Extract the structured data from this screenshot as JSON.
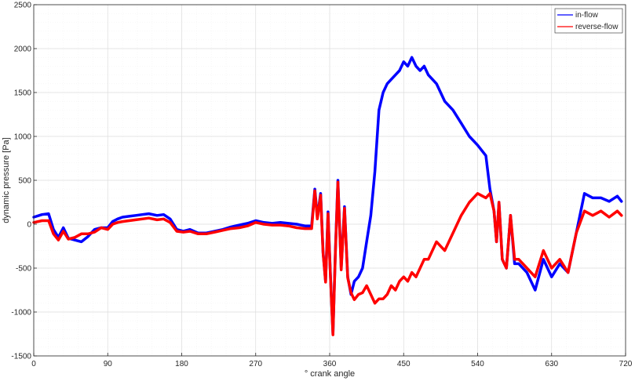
{
  "chart_data": {
    "type": "line",
    "title": "",
    "xlabel": "° crank angle",
    "ylabel": "dynamic pressure [Pa]",
    "xlim": [
      0,
      720
    ],
    "ylim": [
      -1500,
      2500
    ],
    "xticks": [
      0,
      90,
      180,
      270,
      360,
      450,
      540,
      630,
      720
    ],
    "yticks": [
      -1500,
      -1000,
      -500,
      0,
      500,
      1000,
      1500,
      2000,
      2500
    ],
    "grid": true,
    "minor_grid": true,
    "legend_position": "top-right",
    "series": [
      {
        "name": "in-flow",
        "color": "#0000ff",
        "x": [
          0,
          10,
          18,
          24,
          30,
          36,
          42,
          50,
          58,
          66,
          74,
          82,
          90,
          96,
          102,
          108,
          116,
          124,
          132,
          140,
          150,
          158,
          166,
          174,
          182,
          190,
          200,
          210,
          220,
          230,
          240,
          250,
          260,
          270,
          280,
          290,
          300,
          310,
          320,
          330,
          338,
          342,
          345,
          349,
          352,
          355,
          358,
          361,
          364,
          367,
          370,
          374,
          378,
          382,
          386,
          390,
          395,
          400,
          405,
          410,
          415,
          420,
          425,
          430,
          435,
          440,
          445,
          450,
          455,
          460,
          465,
          470,
          475,
          480,
          490,
          500,
          510,
          520,
          530,
          540,
          550,
          555,
          560,
          563,
          566,
          570,
          575,
          580,
          585,
          590,
          600,
          610,
          620,
          630,
          640,
          650,
          660,
          670,
          680,
          690,
          700,
          710,
          715
        ],
        "y": [
          80,
          110,
          120,
          -60,
          -150,
          -40,
          -160,
          -180,
          -200,
          -140,
          -60,
          -40,
          -40,
          30,
          60,
          80,
          90,
          100,
          110,
          120,
          100,
          110,
          60,
          -60,
          -80,
          -60,
          -100,
          -100,
          -80,
          -60,
          -30,
          -10,
          10,
          40,
          20,
          10,
          20,
          10,
          0,
          -20,
          -20,
          400,
          80,
          350,
          -320,
          -650,
          140,
          -580,
          -1250,
          -300,
          500,
          -500,
          200,
          -600,
          -800,
          -650,
          -600,
          -500,
          -200,
          100,
          600,
          1300,
          1500,
          1600,
          1650,
          1700,
          1750,
          1850,
          1800,
          1900,
          1800,
          1750,
          1800,
          1700,
          1600,
          1400,
          1300,
          1150,
          1000,
          900,
          780,
          400,
          150,
          -200,
          250,
          -400,
          -500,
          100,
          -450,
          -450,
          -550,
          -750,
          -400,
          -600,
          -450,
          -550,
          -100,
          350,
          300,
          300,
          260,
          320,
          260
        ]
      },
      {
        "name": "reverse-flow",
        "color": "#ff0000",
        "x": [
          0,
          10,
          18,
          24,
          30,
          36,
          42,
          50,
          58,
          66,
          74,
          82,
          90,
          96,
          102,
          108,
          116,
          124,
          132,
          140,
          150,
          158,
          166,
          174,
          182,
          190,
          200,
          210,
          220,
          230,
          240,
          250,
          260,
          270,
          280,
          290,
          300,
          310,
          320,
          330,
          338,
          342,
          345,
          349,
          352,
          355,
          358,
          361,
          364,
          367,
          370,
          374,
          378,
          382,
          386,
          390,
          395,
          400,
          405,
          410,
          415,
          420,
          425,
          430,
          435,
          440,
          445,
          450,
          455,
          460,
          465,
          470,
          475,
          480,
          490,
          500,
          510,
          520,
          530,
          540,
          550,
          555,
          560,
          563,
          566,
          570,
          575,
          580,
          585,
          590,
          600,
          610,
          620,
          630,
          640,
          650,
          660,
          670,
          680,
          690,
          700,
          710,
          715
        ],
        "y": [
          20,
          40,
          40,
          -110,
          -180,
          -80,
          -170,
          -150,
          -110,
          -110,
          -90,
          -40,
          -60,
          0,
          20,
          30,
          40,
          50,
          60,
          70,
          50,
          60,
          20,
          -80,
          -90,
          -80,
          -110,
          -110,
          -90,
          -70,
          -50,
          -40,
          -20,
          20,
          0,
          -10,
          -10,
          -20,
          -40,
          -50,
          -50,
          380,
          60,
          330,
          -330,
          -660,
          120,
          -600,
          -1260,
          -320,
          480,
          -520,
          180,
          -610,
          -780,
          -860,
          -800,
          -780,
          -700,
          -800,
          -900,
          -850,
          -850,
          -800,
          -700,
          -750,
          -650,
          -600,
          -650,
          -550,
          -600,
          -500,
          -400,
          -400,
          -200,
          -300,
          -100,
          100,
          250,
          350,
          300,
          350,
          150,
          -200,
          250,
          -400,
          -500,
          100,
          -400,
          -400,
          -500,
          -600,
          -300,
          -500,
          -400,
          -550,
          -100,
          150,
          100,
          150,
          80,
          150,
          100
        ]
      }
    ]
  }
}
